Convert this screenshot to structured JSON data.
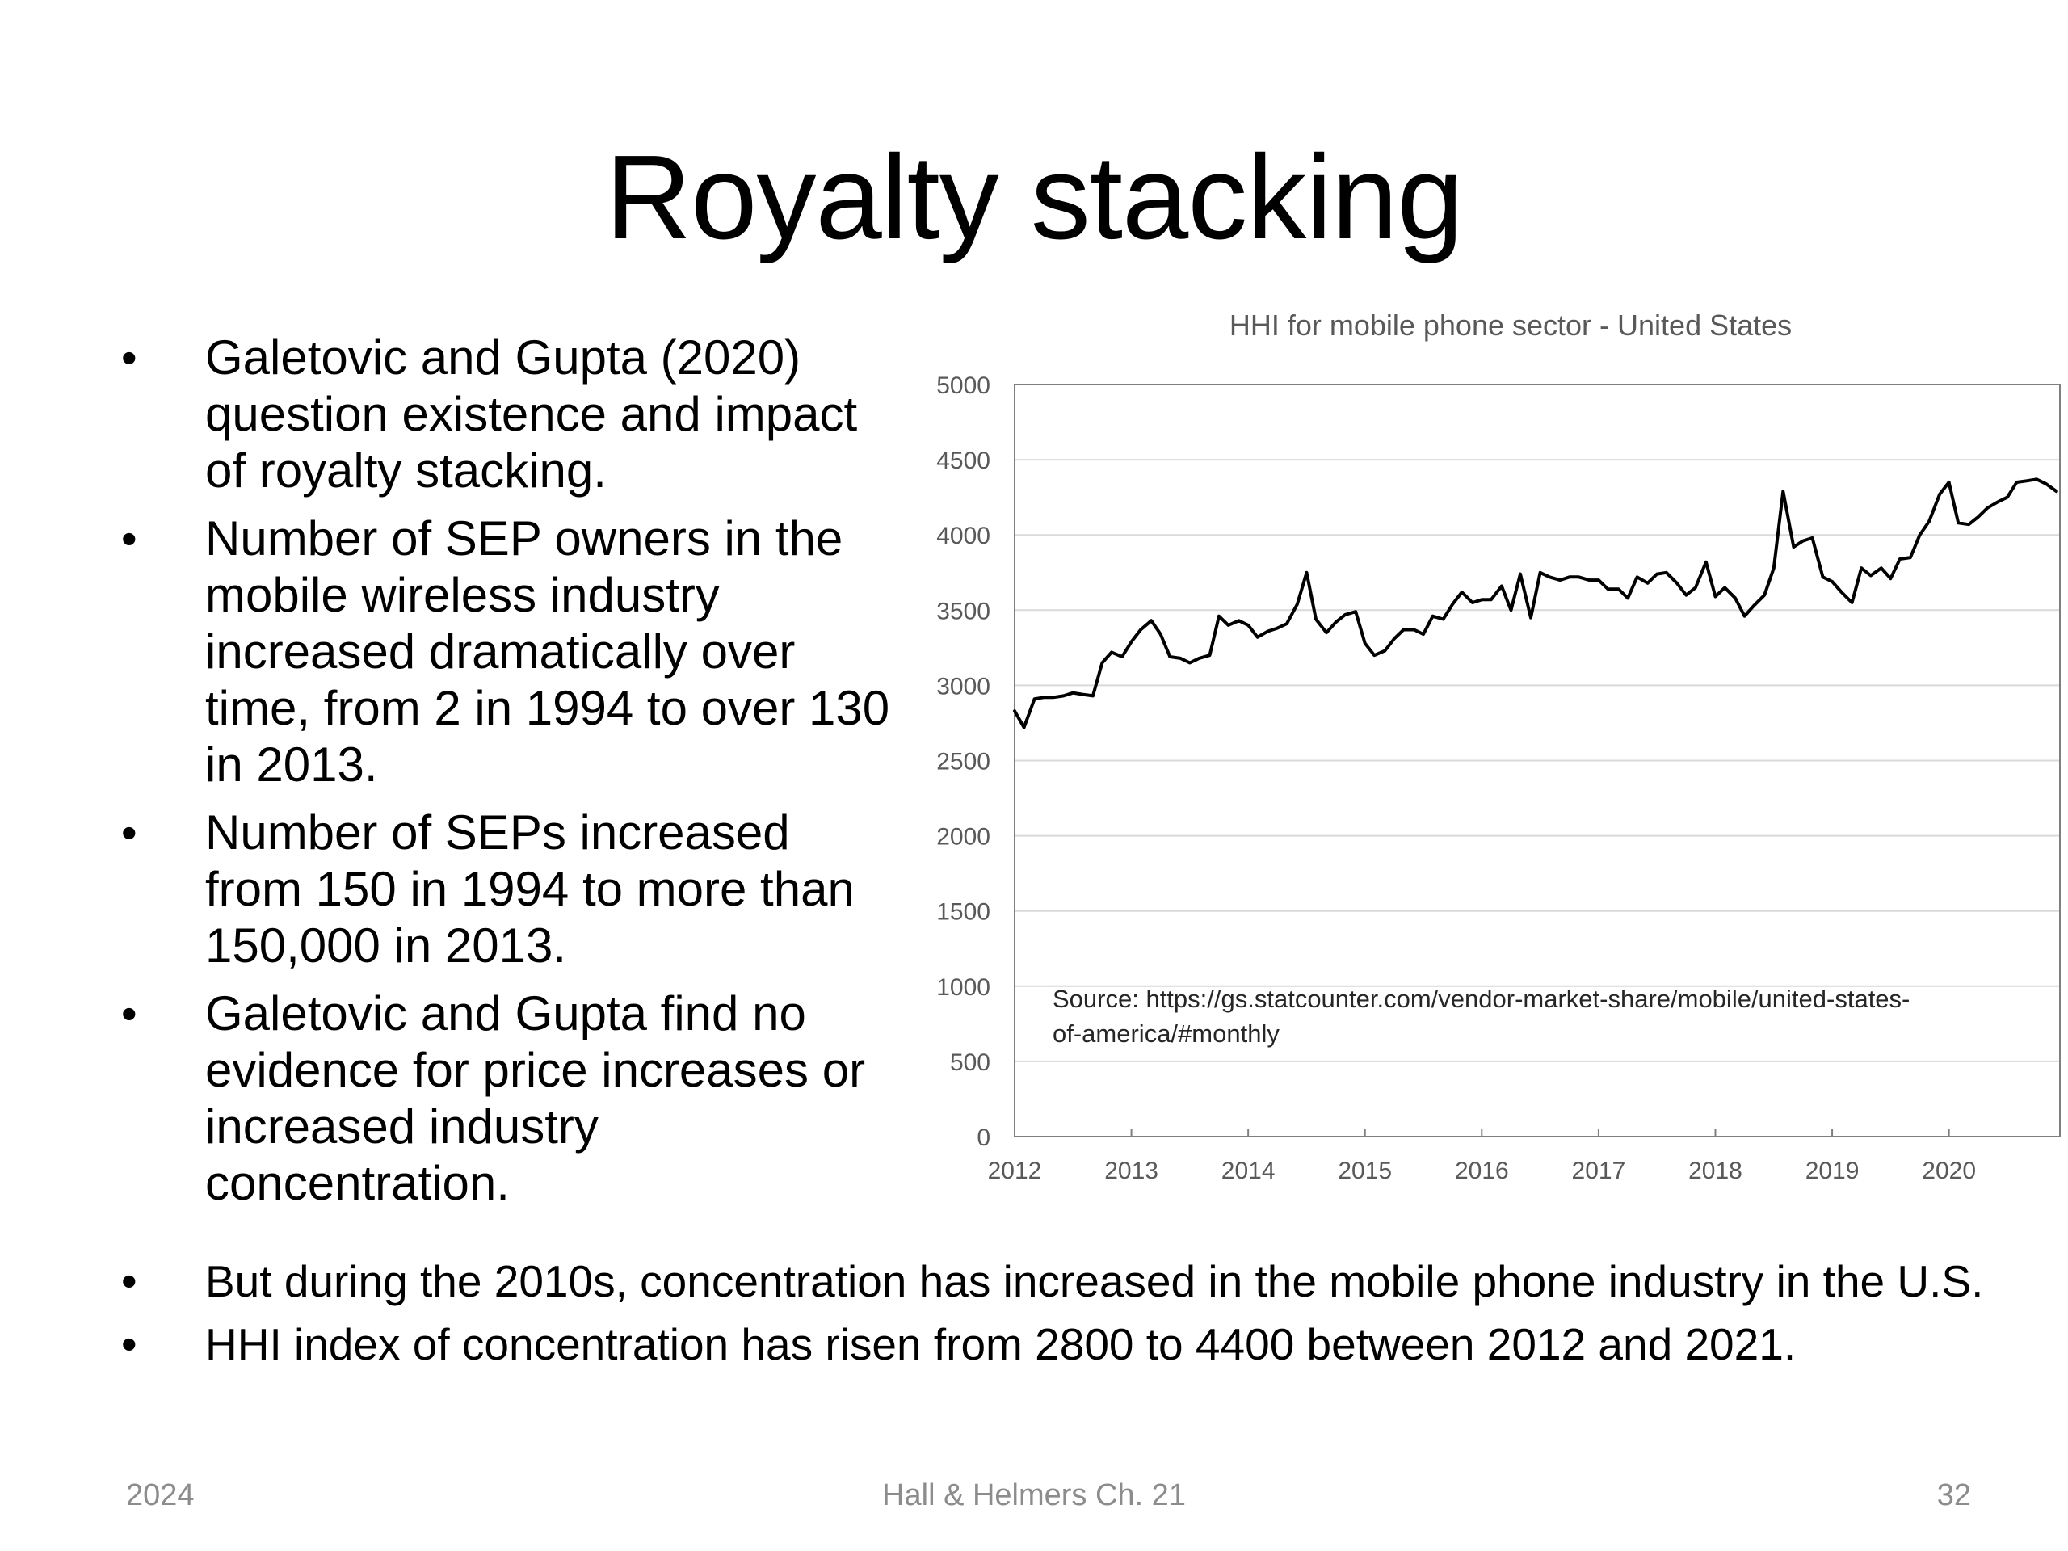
{
  "slide": {
    "title": "Royalty stacking",
    "bullets_left": [
      "Galetovic and Gupta (2020) question existence and impact of royalty stacking.",
      "Number of SEP owners in the mobile wireless industry increased dramatically over time, from 2 in 1994 to over 130 in 2013.",
      "Number of SEPs increased from 150 in 1994 to more than 150,000 in 2013.",
      "Galetovic and Gupta find no evidence for price increases or increased industry concentration."
    ],
    "bullets_bottom": [
      "But during the 2010s, concentration has increased in the mobile phone industry in the U.S.",
      "HHI index of concentration has risen from 2800 to 4400 between 2012 and 2021."
    ],
    "bullet_symbol": "•",
    "footer": {
      "left": "2024",
      "center": "Hall & Helmers Ch. 21",
      "right": "32"
    }
  },
  "chart_data": {
    "type": "line",
    "title": "HHI for mobile phone sector - United States",
    "xlabel": "",
    "ylabel": "",
    "xlim": [
      2012,
      2020.95
    ],
    "ylim": [
      0,
      5000
    ],
    "yticks": [
      0,
      500,
      1000,
      1500,
      2000,
      2500,
      3000,
      3500,
      4000,
      4500,
      5000
    ],
    "xticks": [
      2012,
      2013,
      2014,
      2015,
      2016,
      2017,
      2018,
      2019,
      2020
    ],
    "grid": true,
    "legend": "none",
    "annotation": "Source: https://gs.statcounter.com/vendor-market-share/mobile/united-states-of-america/#monthly",
    "annotation_lines": [
      "Source: https://gs.statcounter.com/vendor-market-share/mobile/united-states-",
      "of-america/#monthly"
    ],
    "line_color": "#000000",
    "grid_color": "#d9d9d9",
    "series": [
      {
        "x": [
          2012.0,
          2012.08,
          2012.17,
          2012.25,
          2012.33,
          2012.42,
          2012.5,
          2012.58,
          2012.67,
          2012.75,
          2012.83,
          2012.92,
          2013.0,
          2013.08,
          2013.17,
          2013.25,
          2013.33,
          2013.42,
          2013.5,
          2013.58,
          2013.67,
          2013.75,
          2013.83,
          2013.92,
          2014.0,
          2014.08,
          2014.17,
          2014.25,
          2014.33,
          2014.42,
          2014.5,
          2014.58,
          2014.67,
          2014.75,
          2014.83,
          2014.92,
          2015.0,
          2015.08,
          2015.17,
          2015.25,
          2015.33,
          2015.42,
          2015.5,
          2015.58,
          2015.67,
          2015.75,
          2015.83,
          2015.92,
          2016.0,
          2016.08,
          2016.17,
          2016.25,
          2016.33,
          2016.42,
          2016.5,
          2016.58,
          2016.67,
          2016.75,
          2016.83,
          2016.92,
          2017.0,
          2017.08,
          2017.17,
          2017.25,
          2017.33,
          2017.42,
          2017.5,
          2017.58,
          2017.67,
          2017.75,
          2017.83,
          2017.92,
          2018.0,
          2018.08,
          2018.17,
          2018.25,
          2018.33,
          2018.42,
          2018.5,
          2018.58,
          2018.67,
          2018.75,
          2018.83,
          2018.92,
          2019.0,
          2019.08,
          2019.17,
          2019.25,
          2019.33,
          2019.42,
          2019.5,
          2019.58,
          2019.67,
          2019.75,
          2019.83,
          2019.92,
          2020.0,
          2020.08,
          2020.17,
          2020.25,
          2020.33,
          2020.42,
          2020.5,
          2020.58,
          2020.67,
          2020.75,
          2020.83,
          2020.92
        ],
        "values": [
          2830,
          2720,
          2910,
          2920,
          2920,
          2930,
          2950,
          2940,
          2930,
          3150,
          3220,
          3190,
          3290,
          3370,
          3430,
          3340,
          3190,
          3180,
          3150,
          3180,
          3200,
          3460,
          3400,
          3430,
          3400,
          3320,
          3360,
          3380,
          3410,
          3540,
          3750,
          3440,
          3350,
          3420,
          3470,
          3490,
          3280,
          3200,
          3230,
          3310,
          3370,
          3370,
          3340,
          3460,
          3440,
          3540,
          3620,
          3550,
          3570,
          3570,
          3660,
          3500,
          3740,
          3450,
          3750,
          3720,
          3700,
          3720,
          3720,
          3700,
          3700,
          3640,
          3640,
          3580,
          3720,
          3680,
          3740,
          3750,
          3680,
          3600,
          3650,
          3820,
          3590,
          3650,
          3580,
          3460,
          3530,
          3600,
          3780,
          4290,
          3920,
          3960,
          3980,
          3720,
          3690,
          3620,
          3550,
          3780,
          3730,
          3780,
          3710,
          3840,
          3850,
          4000,
          4090,
          4270,
          4350,
          4080,
          4070,
          4120,
          4180,
          4220,
          4250,
          4350,
          4360,
          4370,
          4340,
          4290
        ]
      }
    ]
  }
}
